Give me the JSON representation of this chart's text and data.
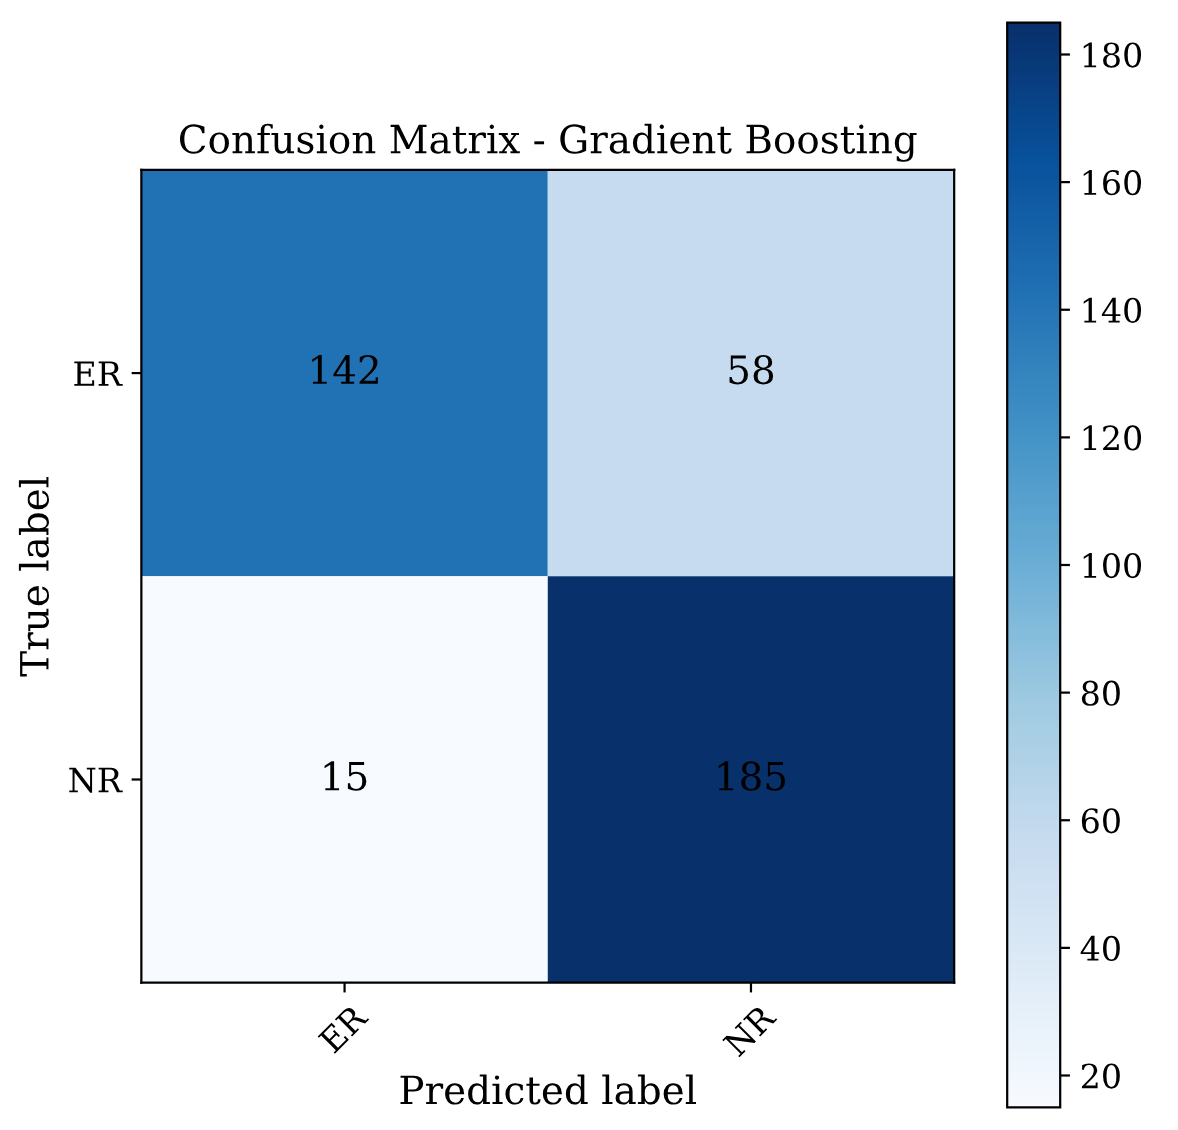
{
  "chart_data": {
    "type": "heatmap",
    "title": "Confusion Matrix - Gradient Boosting",
    "xlabel": "Predicted label",
    "ylabel": "True label",
    "categories": [
      "ER",
      "NR"
    ],
    "y_categories": [
      "ER",
      "NR"
    ],
    "cells": [
      [
        142,
        58
      ],
      [
        15,
        185
      ]
    ],
    "data_labels": true,
    "clim": [
      15,
      185
    ],
    "cticks": [
      20,
      40,
      60,
      80,
      100,
      120,
      140,
      160,
      180
    ]
  }
}
